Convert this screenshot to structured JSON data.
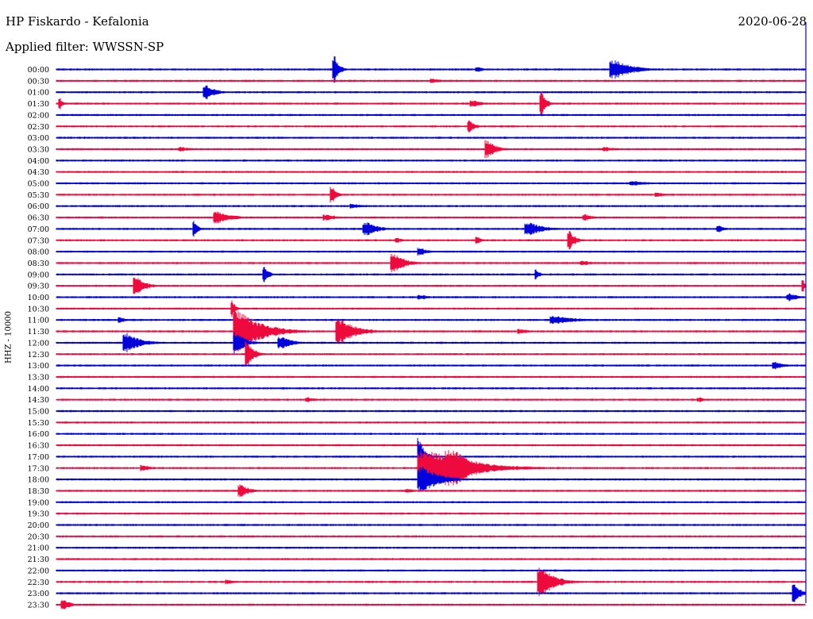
{
  "header": {
    "station": "HP Fiskardo - Kefalonia",
    "filter": "Applied filter: WWSSN-SP",
    "date": "2020-06-28"
  },
  "colors": {
    "even": "#0000dd",
    "odd": "#ee0a3c"
  },
  "chart_data": {
    "type": "line",
    "title": "HP Fiskardo - Kefalonia",
    "ylabel": "HHZ - 10000",
    "xlabel": "",
    "categories": [
      "00:00",
      "00:30",
      "01:00",
      "01:30",
      "02:00",
      "02:30",
      "03:00",
      "03:30",
      "04:00",
      "04:30",
      "05:00",
      "05:30",
      "06:00",
      "06:30",
      "07:00",
      "07:30",
      "08:00",
      "08:30",
      "09:00",
      "09:30",
      "10:00",
      "10:30",
      "11:00",
      "11:30",
      "12:00",
      "12:30",
      "13:00",
      "13:30",
      "14:00",
      "14:30",
      "15:00",
      "15:30",
      "16:00",
      "16:30",
      "17:00",
      "17:30",
      "18:00",
      "18:30",
      "19:00",
      "19:30",
      "20:00",
      "20:30",
      "21:00",
      "21:30",
      "22:00",
      "22:30",
      "23:00",
      "23:30"
    ],
    "xlim": [
      0,
      30
    ],
    "grid": false,
    "legend": "none",
    "events": [
      {
        "row": 0,
        "minute": 11.1,
        "amp": 18,
        "dur": 0.4
      },
      {
        "row": 0,
        "minute": 16.8,
        "amp": 4,
        "dur": 0.6
      },
      {
        "row": 0,
        "minute": 22.2,
        "amp": 12,
        "dur": 1.5
      },
      {
        "row": 1,
        "minute": 15.0,
        "amp": 3,
        "dur": 0.8
      },
      {
        "row": 2,
        "minute": 5.9,
        "amp": 10,
        "dur": 0.8
      },
      {
        "row": 3,
        "minute": 0.1,
        "amp": 8,
        "dur": 0.3
      },
      {
        "row": 3,
        "minute": 16.6,
        "amp": 4,
        "dur": 1.0
      },
      {
        "row": 3,
        "minute": 19.4,
        "amp": 16,
        "dur": 0.4
      },
      {
        "row": 5,
        "minute": 16.5,
        "amp": 8,
        "dur": 0.5
      },
      {
        "row": 7,
        "minute": 17.2,
        "amp": 12,
        "dur": 0.7
      },
      {
        "row": 7,
        "minute": 4.9,
        "amp": 3,
        "dur": 1.0
      },
      {
        "row": 7,
        "minute": 21.9,
        "amp": 3,
        "dur": 1.0
      },
      {
        "row": 10,
        "minute": 23.0,
        "amp": 3,
        "dur": 1.5
      },
      {
        "row": 11,
        "minute": 11.0,
        "amp": 12,
        "dur": 0.4
      },
      {
        "row": 11,
        "minute": 24.0,
        "amp": 3,
        "dur": 0.8
      },
      {
        "row": 12,
        "minute": 11.8,
        "amp": 3,
        "dur": 1.0
      },
      {
        "row": 13,
        "minute": 6.3,
        "amp": 8,
        "dur": 1.3
      },
      {
        "row": 13,
        "minute": 10.7,
        "amp": 4,
        "dur": 1.0
      },
      {
        "row": 13,
        "minute": 21.1,
        "amp": 4,
        "dur": 0.8
      },
      {
        "row": 14,
        "minute": 5.5,
        "amp": 10,
        "dur": 0.3
      },
      {
        "row": 14,
        "minute": 12.3,
        "amp": 9,
        "dur": 1.0
      },
      {
        "row": 14,
        "minute": 18.8,
        "amp": 8,
        "dur": 1.3
      },
      {
        "row": 14,
        "minute": 26.5,
        "amp": 5,
        "dur": 0.5
      },
      {
        "row": 15,
        "minute": 13.6,
        "amp": 3,
        "dur": 0.6
      },
      {
        "row": 15,
        "minute": 16.8,
        "amp": 5,
        "dur": 0.4
      },
      {
        "row": 15,
        "minute": 20.5,
        "amp": 12,
        "dur": 0.5
      },
      {
        "row": 16,
        "minute": 14.5,
        "amp": 5,
        "dur": 0.7
      },
      {
        "row": 17,
        "minute": 13.4,
        "amp": 12,
        "dur": 1.0
      },
      {
        "row": 17,
        "minute": 21.0,
        "amp": 3,
        "dur": 1.0
      },
      {
        "row": 18,
        "minute": 8.3,
        "amp": 10,
        "dur": 0.4
      },
      {
        "row": 18,
        "minute": 19.2,
        "amp": 7,
        "dur": 0.3
      },
      {
        "row": 19,
        "minute": 3.1,
        "amp": 12,
        "dur": 0.8
      },
      {
        "row": 19,
        "minute": 29.9,
        "amp": 8,
        "dur": 0.2
      },
      {
        "row": 20,
        "minute": 14.5,
        "amp": 3,
        "dur": 1.0
      },
      {
        "row": 20,
        "minute": 29.3,
        "amp": 5,
        "dur": 0.8
      },
      {
        "row": 21,
        "minute": 7.0,
        "amp": 12,
        "dur": 0.3
      },
      {
        "row": 22,
        "minute": 2.5,
        "amp": 4,
        "dur": 0.5
      },
      {
        "row": 22,
        "minute": 19.8,
        "amp": 5,
        "dur": 2.0
      },
      {
        "row": 23,
        "minute": 7.1,
        "amp": 26,
        "dur": 2.0
      },
      {
        "row": 23,
        "minute": 11.2,
        "amp": 16,
        "dur": 1.4
      },
      {
        "row": 23,
        "minute": 18.5,
        "amp": 3,
        "dur": 1.0
      },
      {
        "row": 24,
        "minute": 2.7,
        "amp": 12,
        "dur": 1.2
      },
      {
        "row": 24,
        "minute": 7.1,
        "amp": 14,
        "dur": 0.8
      },
      {
        "row": 24,
        "minute": 8.9,
        "amp": 8,
        "dur": 1.0
      },
      {
        "row": 25,
        "minute": 7.6,
        "amp": 16,
        "dur": 0.6
      },
      {
        "row": 26,
        "minute": 28.7,
        "amp": 5,
        "dur": 0.8
      },
      {
        "row": 29,
        "minute": 10.0,
        "amp": 3,
        "dur": 0.8
      },
      {
        "row": 29,
        "minute": 25.7,
        "amp": 3,
        "dur": 0.6
      },
      {
        "row": 34,
        "minute": 14.5,
        "amp": 26,
        "dur": 0.4
      },
      {
        "row": 35,
        "minute": 14.5,
        "amp": 22,
        "dur": 3.5
      },
      {
        "row": 35,
        "minute": 15.6,
        "amp": 24,
        "dur": 2.0
      },
      {
        "row": 35,
        "minute": 3.4,
        "amp": 4,
        "dur": 0.8
      },
      {
        "row": 36,
        "minute": 14.5,
        "amp": 16,
        "dur": 1.5
      },
      {
        "row": 37,
        "minute": 7.3,
        "amp": 8,
        "dur": 0.8
      },
      {
        "row": 37,
        "minute": 14.0,
        "amp": 3,
        "dur": 0.6
      },
      {
        "row": 45,
        "minute": 19.3,
        "amp": 18,
        "dur": 1.2
      },
      {
        "row": 45,
        "minute": 6.8,
        "amp": 3,
        "dur": 0.6
      },
      {
        "row": 46,
        "minute": 29.5,
        "amp": 14,
        "dur": 0.5
      },
      {
        "row": 47,
        "minute": 0.2,
        "amp": 8,
        "dur": 0.6
      }
    ]
  }
}
